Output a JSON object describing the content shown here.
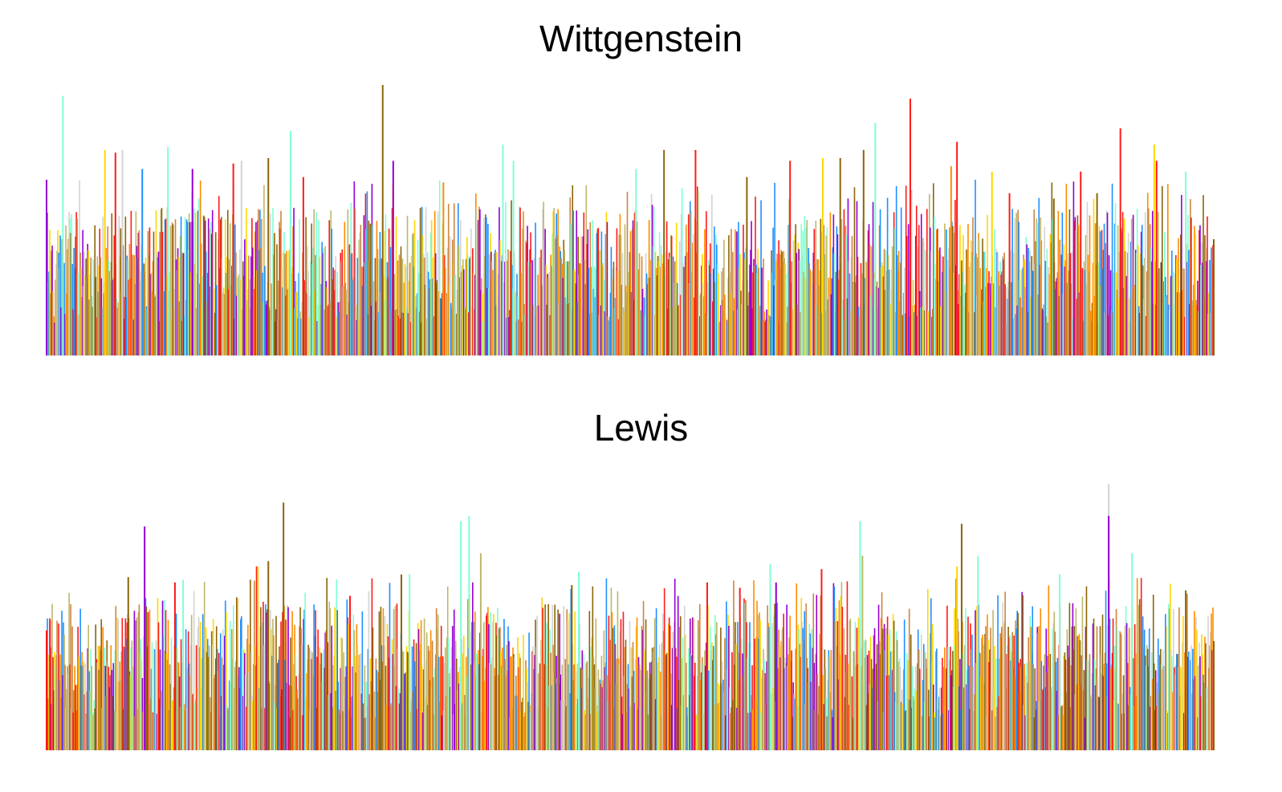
{
  "chart_data": [
    {
      "type": "bar",
      "title": "Wittgenstein",
      "xlabel": "",
      "ylabel": "",
      "ylim": [
        0,
        1
      ],
      "grid": false,
      "legend": "none",
      "bar_count": 1450,
      "palette": [
        "#7FFFD4",
        "#8B6508",
        "#FF1A1A",
        "#D3D3D3",
        "#9400D3",
        "#BDB76B",
        "#FFD700",
        "#1E90FF",
        "#FF8C00",
        "#CD853F"
      ],
      "peaks": [
        {
          "x": 0.288,
          "value": 1.0,
          "color": "#8B6508"
        },
        {
          "x": 0.014,
          "value": 0.96,
          "color": "#7FFFD4"
        },
        {
          "x": 0.74,
          "value": 0.95,
          "color": "#FF1A1A"
        },
        {
          "x": 0.71,
          "value": 0.86,
          "color": "#7FFFD4"
        },
        {
          "x": 0.92,
          "value": 0.84,
          "color": "#FF1A1A"
        },
        {
          "x": 0.209,
          "value": 0.83,
          "color": "#7FFFD4"
        },
        {
          "x": 0.78,
          "value": 0.79,
          "color": "#FF1A1A"
        },
        {
          "x": 0.529,
          "value": 0.76,
          "color": "#8B6508"
        },
        {
          "x": 0.556,
          "value": 0.76,
          "color": "#FF1A1A"
        },
        {
          "x": 0.05,
          "value": 0.76,
          "color": "#FFD700"
        },
        {
          "x": 0.059,
          "value": 0.75,
          "color": "#FF1A1A"
        },
        {
          "x": 0.065,
          "value": 0.76,
          "color": "#D3D3D3"
        },
        {
          "x": 0.104,
          "value": 0.77,
          "color": "#7FFFD4"
        },
        {
          "x": 0.949,
          "value": 0.78,
          "color": "#FFD700"
        },
        {
          "x": 0.951,
          "value": 0.72,
          "color": "#FF1A1A"
        },
        {
          "x": 0.297,
          "value": 0.72,
          "color": "#9400D3"
        },
        {
          "x": 0.19,
          "value": 0.73,
          "color": "#8B6508"
        },
        {
          "x": 0.391,
          "value": 0.78,
          "color": "#7FFFD4"
        },
        {
          "x": 0.4,
          "value": 0.72,
          "color": "#7FFFD4"
        },
        {
          "x": 0.637,
          "value": 0.72,
          "color": "#FF1A1A"
        },
        {
          "x": 0.082,
          "value": 0.69,
          "color": "#1E90FF"
        },
        {
          "x": 0.775,
          "value": 0.7,
          "color": "#FF8C00"
        },
        {
          "x": 0.81,
          "value": 0.68,
          "color": "#FFD700"
        },
        {
          "x": 0.68,
          "value": 0.73,
          "color": "#8B6508"
        },
        {
          "x": 0.7,
          "value": 0.76,
          "color": "#8B6508"
        },
        {
          "x": 0.665,
          "value": 0.73,
          "color": "#FFD700"
        },
        {
          "x": 0.886,
          "value": 0.68,
          "color": "#FF1A1A"
        },
        {
          "x": 0.976,
          "value": 0.68,
          "color": "#7FFFD4"
        },
        {
          "x": 0.22,
          "value": 0.66,
          "color": "#FF1A1A"
        },
        {
          "x": 0.34,
          "value": 0.64,
          "color": "#FF8C00"
        },
        {
          "x": 0.125,
          "value": 0.69,
          "color": "#9400D3"
        },
        {
          "x": 0.16,
          "value": 0.71,
          "color": "#FF1A1A"
        },
        {
          "x": 0.167,
          "value": 0.72,
          "color": "#D3D3D3"
        },
        {
          "x": 0.505,
          "value": 0.69,
          "color": "#7FFFD4"
        },
        {
          "x": 0.6,
          "value": 0.66,
          "color": "#8B6508"
        },
        {
          "x": 0.825,
          "value": 0.6,
          "color": "#FF1A1A"
        },
        {
          "x": 0.863,
          "value": 0.58,
          "color": "#8B6508"
        },
        {
          "x": 0.9,
          "value": 0.6,
          "color": "#8B6508"
        }
      ]
    },
    {
      "type": "bar",
      "title": "Lewis",
      "xlabel": "",
      "ylabel": "",
      "ylim": [
        0,
        1
      ],
      "grid": false,
      "legend": "none",
      "bar_count": 1450,
      "palette": [
        "#7FFFD4",
        "#8B6508",
        "#FF1A1A",
        "#D3D3D3",
        "#9400D3",
        "#BDB76B",
        "#FFD700",
        "#1E90FF",
        "#FF8C00",
        "#CD853F"
      ],
      "peaks": [
        {
          "x": 0.91,
          "value": 1.0,
          "color": "#D3D3D3"
        },
        {
          "x": 0.91,
          "value": 0.88,
          "color": "#9400D3"
        },
        {
          "x": 0.203,
          "value": 0.93,
          "color": "#8B6508"
        },
        {
          "x": 0.362,
          "value": 0.88,
          "color": "#7FFFD4"
        },
        {
          "x": 0.355,
          "value": 0.86,
          "color": "#7FFFD4"
        },
        {
          "x": 0.697,
          "value": 0.86,
          "color": "#7FFFD4"
        },
        {
          "x": 0.784,
          "value": 0.85,
          "color": "#8B6508"
        },
        {
          "x": 0.084,
          "value": 0.84,
          "color": "#9400D3"
        },
        {
          "x": 0.372,
          "value": 0.74,
          "color": "#BDB76B"
        },
        {
          "x": 0.19,
          "value": 0.71,
          "color": "#8B6508"
        },
        {
          "x": 0.18,
          "value": 0.69,
          "color": "#FF1A1A"
        },
        {
          "x": 0.181,
          "value": 0.69,
          "color": "#FFD700"
        },
        {
          "x": 0.07,
          "value": 0.65,
          "color": "#8B6508"
        },
        {
          "x": 0.62,
          "value": 0.7,
          "color": "#7FFFD4"
        },
        {
          "x": 0.699,
          "value": 0.73,
          "color": "#BDB76B"
        },
        {
          "x": 0.78,
          "value": 0.69,
          "color": "#FFD700"
        },
        {
          "x": 0.798,
          "value": 0.73,
          "color": "#7FFFD4"
        },
        {
          "x": 0.93,
          "value": 0.74,
          "color": "#7FFFD4"
        },
        {
          "x": 0.664,
          "value": 0.68,
          "color": "#FF1A1A"
        },
        {
          "x": 0.456,
          "value": 0.67,
          "color": "#7FFFD4"
        },
        {
          "x": 0.45,
          "value": 0.62,
          "color": "#8B6508"
        },
        {
          "x": 0.304,
          "value": 0.66,
          "color": "#8B6508"
        },
        {
          "x": 0.311,
          "value": 0.66,
          "color": "#7FFFD4"
        },
        {
          "x": 0.566,
          "value": 0.63,
          "color": "#FF1A1A"
        },
        {
          "x": 0.594,
          "value": 0.61,
          "color": "#FF1A1A"
        },
        {
          "x": 0.625,
          "value": 0.63,
          "color": "#9400D3"
        },
        {
          "x": 0.11,
          "value": 0.63,
          "color": "#FF1A1A"
        },
        {
          "x": 0.117,
          "value": 0.64,
          "color": "#7FFFD4"
        },
        {
          "x": 0.868,
          "value": 0.66,
          "color": "#7FFFD4"
        },
        {
          "x": 0.976,
          "value": 0.6,
          "color": "#8B6508"
        },
        {
          "x": 0.003,
          "value": 0.49,
          "color": "#FF1A1A"
        },
        {
          "x": 0.26,
          "value": 0.58,
          "color": "#FF1A1A"
        }
      ]
    }
  ]
}
